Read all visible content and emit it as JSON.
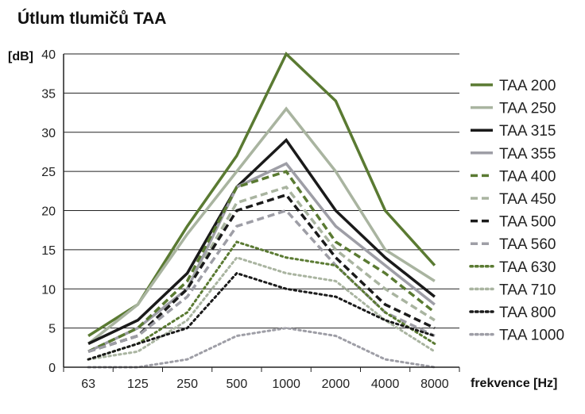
{
  "chart_data": {
    "type": "line",
    "title": "Útlum tlumičů TAA",
    "ylabel": "[dB]",
    "xlabel": "frekvence [Hz]",
    "ylim": [
      0,
      40
    ],
    "yticks": [
      0,
      5,
      10,
      15,
      20,
      25,
      30,
      35,
      40
    ],
    "categories": [
      "63",
      "125",
      "250",
      "500",
      "1000",
      "2000",
      "4000",
      "8000"
    ],
    "grid": true,
    "legend": "right",
    "series": [
      {
        "name": "TAA 200",
        "color": "#5a7a32",
        "style": "solid",
        "values": [
          4,
          8,
          18,
          27,
          40,
          34,
          20,
          13
        ]
      },
      {
        "name": "TAA 250",
        "color": "#a9b4a0",
        "style": "solid",
        "values": [
          3,
          8,
          17,
          25,
          33,
          25,
          15,
          11
        ]
      },
      {
        "name": "TAA 315",
        "color": "#1a1a1a",
        "style": "solid",
        "values": [
          3,
          6,
          12,
          23,
          29,
          20,
          14,
          9
        ]
      },
      {
        "name": "TAA 355",
        "color": "#9e9ea6",
        "style": "solid",
        "values": [
          2,
          5,
          10,
          23,
          26,
          18,
          13,
          8
        ]
      },
      {
        "name": "TAA 400",
        "color": "#5a7a32",
        "style": "dash",
        "values": [
          2,
          5,
          11,
          23,
          25,
          16,
          12,
          7
        ]
      },
      {
        "name": "TAA 450",
        "color": "#a9b4a0",
        "style": "dash",
        "values": [
          2,
          4,
          10,
          21,
          23,
          15,
          10,
          6
        ]
      },
      {
        "name": "TAA 500",
        "color": "#1a1a1a",
        "style": "dash",
        "values": [
          2,
          4,
          10,
          20,
          22,
          14,
          8,
          5
        ]
      },
      {
        "name": "TAA 560",
        "color": "#9e9ea6",
        "style": "dash",
        "values": [
          2,
          4,
          9,
          18,
          20,
          13,
          7,
          4
        ]
      },
      {
        "name": "TAA 630",
        "color": "#5a7a32",
        "style": "dot",
        "values": [
          1,
          3,
          7,
          16,
          14,
          13,
          7,
          3
        ]
      },
      {
        "name": "TAA 710",
        "color": "#a9b4a0",
        "style": "dot",
        "values": [
          1,
          2,
          6,
          14,
          12,
          11,
          6,
          2
        ]
      },
      {
        "name": "TAA 800",
        "color": "#1a1a1a",
        "style": "dot",
        "values": [
          1,
          3,
          5,
          12,
          10,
          9,
          6,
          4
        ]
      },
      {
        "name": "TAA 1000",
        "color": "#9e9ea6",
        "style": "dot",
        "values": [
          0,
          0,
          1,
          4,
          5,
          4,
          1,
          0
        ]
      }
    ]
  }
}
